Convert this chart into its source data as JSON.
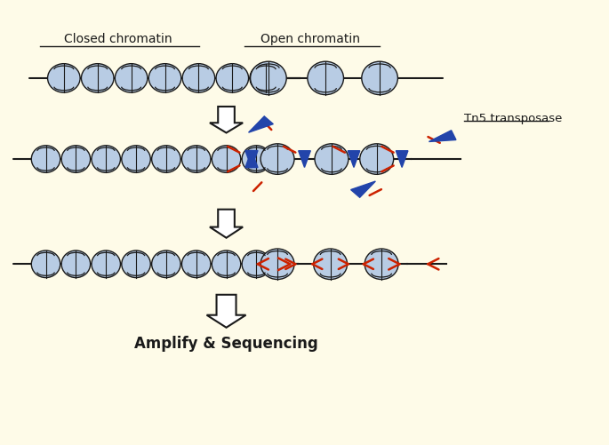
{
  "background_color": "#FEFBE8",
  "fig_width": 6.85,
  "fig_height": 5.01,
  "nucleosome_fill": "#B8CCE4",
  "nucleosome_edge": "#1a1a1a",
  "dna_color": "#1a1a1a",
  "adapter_color": "#CC2200",
  "transposase_arrow_color": "#2244AA",
  "text_color": "#1a1a1a",
  "arrow_fill": "#FFFFFF",
  "arrow_edge": "#1a1a1a",
  "label_closed": "Closed chromatin",
  "label_open": "Open chromatin",
  "label_tn5": "Tn5 transposase",
  "label_amplify": "Amplify & Sequencing"
}
